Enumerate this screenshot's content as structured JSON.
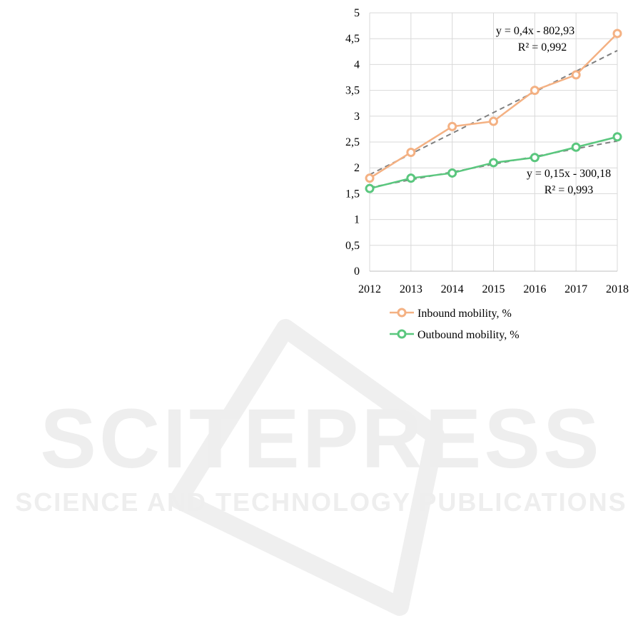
{
  "watermark": {
    "title": "SCITEPRESS",
    "subtitle": "SCIENCE AND TECHNOLOGY PUBLICATIONS"
  },
  "chart_data": {
    "type": "line",
    "x": [
      2012,
      2013,
      2014,
      2015,
      2016,
      2017,
      2018
    ],
    "ylim": [
      0,
      5
    ],
    "yticks": [
      "0",
      "0,5",
      "1",
      "1,5",
      "2",
      "2,5",
      "3",
      "3,5",
      "4",
      "4,5",
      "5"
    ],
    "grid": true,
    "legend_position": "bottom",
    "series": [
      {
        "name": "Inbound mobility, %",
        "color": "#f4b183",
        "values": [
          1.8,
          2.3,
          2.8,
          2.9,
          3.5,
          3.8,
          4.6
        ],
        "trendline": {
          "slope": 0.4,
          "intercept": -802.93,
          "equation": "y = 0,4x - 802,93",
          "r2": "R² = 0,992"
        }
      },
      {
        "name": "Outbound mobility, %",
        "color": "#5ac77e",
        "values": [
          1.6,
          1.8,
          1.9,
          2.1,
          2.2,
          2.4,
          2.6
        ],
        "trendline": {
          "slope": 0.15,
          "intercept": -300.18,
          "equation": "y = 0,15x - 300,18",
          "r2": "R² = 0,993"
        }
      }
    ]
  }
}
